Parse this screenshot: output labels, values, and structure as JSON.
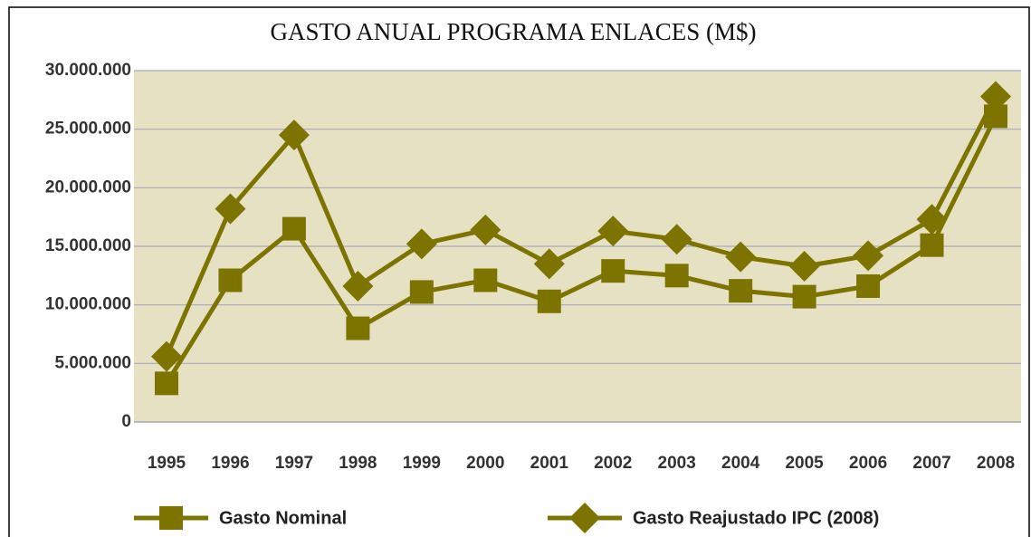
{
  "chart_data": {
    "type": "line",
    "title": "GASTO ANUAL PROGRAMA ENLACES (M$)",
    "categories": [
      "1995",
      "1996",
      "1997",
      "1998",
      "1999",
      "2000",
      "2001",
      "2002",
      "2003",
      "2004",
      "2005",
      "2006",
      "2007",
      "2008"
    ],
    "series": [
      {
        "name": "Gasto Nominal",
        "color": "#7d7400",
        "marker": "square",
        "values": [
          3300000,
          12100000,
          16500000,
          8000000,
          11100000,
          12100000,
          10300000,
          12900000,
          12500000,
          11200000,
          10700000,
          11600000,
          15100000,
          26100000
        ]
      },
      {
        "name": "Gasto Reajustado IPC (2008)",
        "color": "#7d7400",
        "marker": "diamond",
        "values": [
          5600000,
          18200000,
          24500000,
          11600000,
          15200000,
          16400000,
          13500000,
          16300000,
          15600000,
          14100000,
          13300000,
          14200000,
          17300000,
          27800000
        ]
      }
    ],
    "ylim": [
      0,
      30000000
    ],
    "yticks": [
      0,
      {
        "value": 5000000,
        "label": "5.000.000"
      },
      {
        "value": 10000000,
        "label": "10.000.000"
      },
      {
        "value": 15000000,
        "label": "15.000.000"
      },
      {
        "value": 20000000,
        "label": "20.000.000"
      },
      {
        "value": 25000000,
        "label": "25.000.000"
      },
      {
        "value": 30000000,
        "label": "30.000.000"
      }
    ],
    "grid": true
  }
}
